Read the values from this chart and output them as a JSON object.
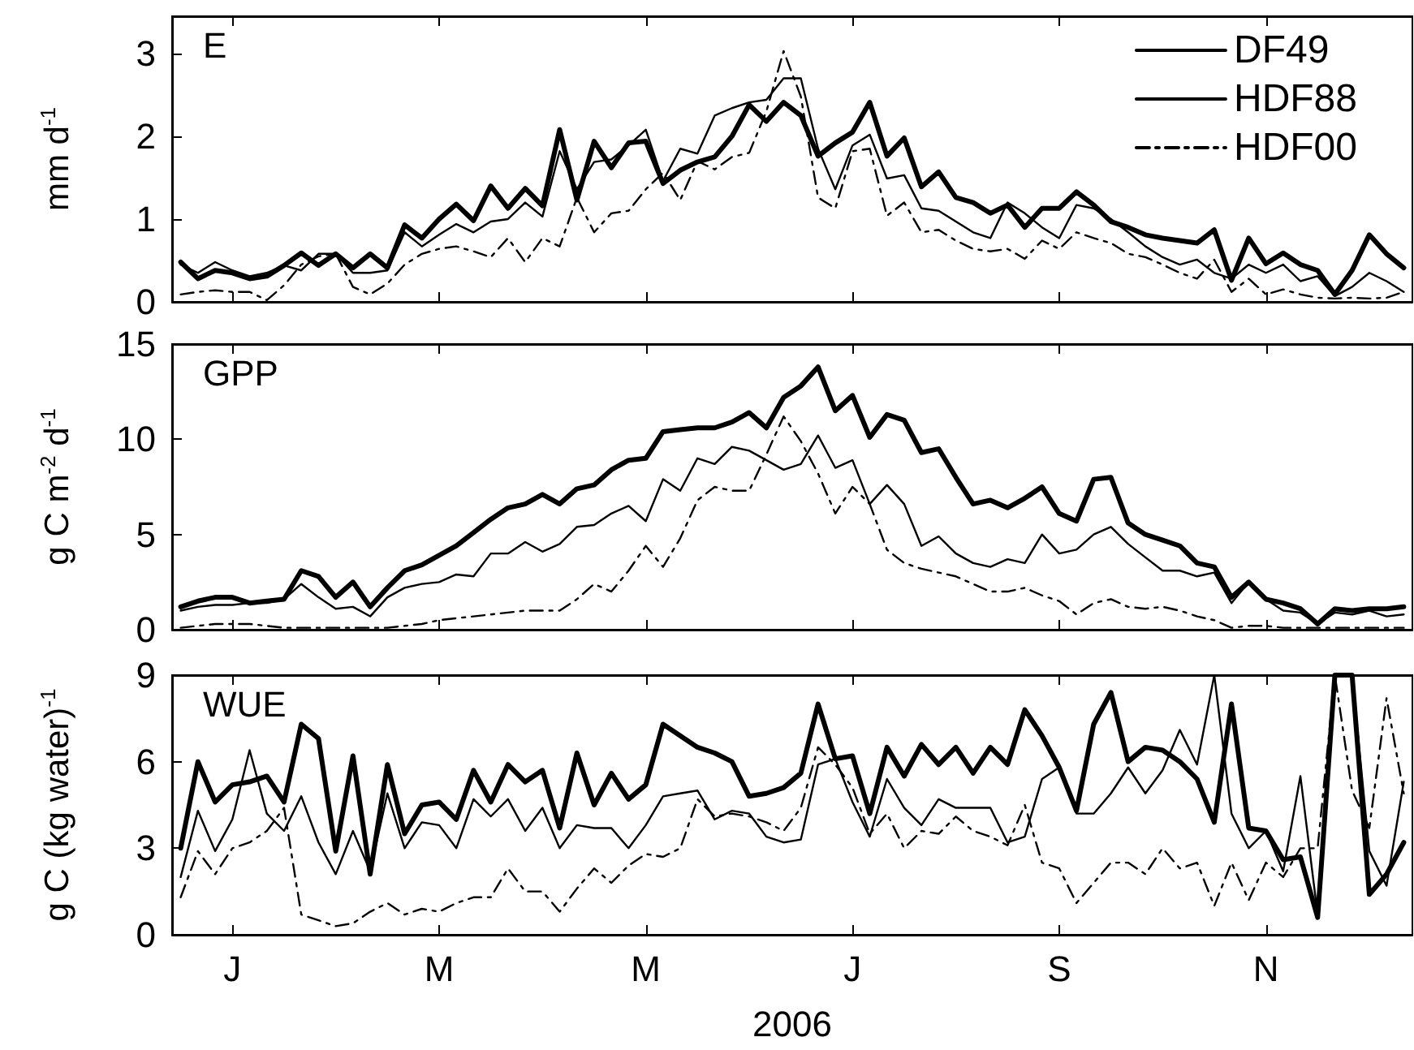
{
  "chart_data": [
    {
      "type": "line",
      "title": "E",
      "ylabel": "mm d$^{-1}$",
      "legend": "top right",
      "marker": "none",
      "grid": false,
      "tick_labels": "y",
      "ylim": [
        0,
        3.45
      ],
      "yticks": [
        0,
        1,
        2,
        3
      ],
      "categories": [
        null,
        null,
        null,
        null,
        null,
        null,
        null,
        null,
        null,
        null,
        null,
        null,
        null,
        null,
        null,
        null,
        null,
        null,
        null,
        null,
        null,
        null,
        null,
        null,
        null,
        null,
        null,
        null,
        null,
        null,
        null,
        null,
        null,
        null,
        null,
        null,
        null,
        null,
        null,
        null,
        null,
        null,
        null,
        null,
        null,
        null,
        null,
        null,
        null,
        null,
        null,
        null,
        null,
        null,
        null,
        null,
        null,
        null,
        null,
        null,
        null,
        null,
        null,
        null,
        null,
        null,
        null,
        null,
        null,
        null,
        null,
        null
      ],
      "series": [
        {
          "name": "DF49",
          "color": "#000000",
          "line_style": "solid",
          "values": [
            0.48,
            0.28,
            0.38,
            0.35,
            0.28,
            0.31,
            0.44,
            0.59,
            0.44,
            0.58,
            0.41,
            0.58,
            0.41,
            0.93,
            0.77,
            1.0,
            1.18,
            0.98,
            1.4,
            1.13,
            1.37,
            1.16,
            2.08,
            1.23,
            1.94,
            1.62,
            1.92,
            1.94,
            1.43,
            1.59,
            1.69,
            1.75,
            2.0,
            2.38,
            2.18,
            2.41,
            2.25,
            1.76,
            1.92,
            2.05,
            2.41,
            1.76,
            1.98,
            1.39,
            1.57,
            1.26,
            1.2,
            1.07,
            1.17,
            0.9,
            1.13,
            1.13,
            1.33,
            1.17,
            0.97,
            0.9,
            0.81,
            0.77,
            0.74,
            0.71,
            0.87,
            0.26,
            0.77,
            0.46,
            0.59,
            0.45,
            0.38,
            0.09,
            0.38,
            0.81,
            0.58,
            0.41
          ]
        },
        {
          "name": "HDF88",
          "color": "#000000",
          "line_style": "solid",
          "values": [
            0.45,
            0.35,
            0.48,
            0.38,
            0.31,
            0.35,
            0.44,
            0.38,
            0.58,
            0.58,
            0.35,
            0.35,
            0.38,
            0.84,
            0.67,
            0.81,
            0.94,
            0.84,
            0.97,
            1.0,
            1.2,
            1.03,
            1.82,
            1.36,
            1.69,
            1.72,
            1.89,
            2.08,
            1.46,
            1.85,
            1.79,
            2.25,
            2.34,
            2.41,
            2.44,
            2.7,
            2.7,
            1.85,
            1.36,
            1.89,
            2.02,
            1.49,
            1.53,
            1.13,
            1.1,
            0.97,
            0.84,
            0.77,
            1.2,
            1.07,
            0.9,
            0.77,
            1.17,
            1.13,
            1.0,
            0.84,
            0.67,
            0.54,
            0.45,
            0.51,
            0.35,
            0.28,
            0.45,
            0.35,
            0.45,
            0.25,
            0.31,
            0.07,
            0.18,
            0.35,
            0.25,
            0.12
          ]
        },
        {
          "name": "HDF00",
          "color": "#000000",
          "line_style": "dashdot",
          "values": [
            0.09,
            0.12,
            0.14,
            0.12,
            0.12,
            0.02,
            0.2,
            0.45,
            0.55,
            0.58,
            0.18,
            0.09,
            0.22,
            0.45,
            0.58,
            0.64,
            0.67,
            0.61,
            0.54,
            0.77,
            0.48,
            0.77,
            0.67,
            1.26,
            0.84,
            1.07,
            1.1,
            1.36,
            1.56,
            1.23,
            1.7,
            1.6,
            1.75,
            1.8,
            2.3,
            3.03,
            2.48,
            1.26,
            1.13,
            1.82,
            1.85,
            1.04,
            1.2,
            0.84,
            0.87,
            0.74,
            0.64,
            0.61,
            0.64,
            0.52,
            0.74,
            0.64,
            0.84,
            0.77,
            0.71,
            0.58,
            0.54,
            0.45,
            0.35,
            0.28,
            0.51,
            0.12,
            0.28,
            0.09,
            0.15,
            0.09,
            0.05,
            0.04,
            0.05,
            0.04,
            0.05,
            0.12
          ]
        }
      ]
    },
    {
      "type": "line",
      "title": "GPP",
      "ylabel": "g C m$^{-2}$ d$^{-1}$",
      "marker": "none",
      "grid": false,
      "tick_labels": "y",
      "ylim": [
        0,
        15
      ],
      "yticks": [
        0,
        5,
        10,
        15
      ],
      "categories": [
        null,
        null,
        null,
        null,
        null,
        null,
        null,
        null,
        null,
        null,
        null,
        null,
        null,
        null,
        null,
        null,
        null,
        null,
        null,
        null,
        null,
        null,
        null,
        null,
        null,
        null,
        null,
        null,
        null,
        null,
        null,
        null,
        null,
        null,
        null,
        null,
        null,
        null,
        null,
        null,
        null,
        null,
        null,
        null,
        null,
        null,
        null,
        null,
        null,
        null,
        null,
        null,
        null,
        null,
        null,
        null,
        null,
        null,
        null,
        null,
        null,
        null,
        null,
        null,
        null,
        null,
        null,
        null,
        null,
        null,
        null,
        null
      ],
      "series": [
        {
          "color": "#000000",
          "line_style": "solid",
          "values": [
            1.2,
            1.5,
            1.7,
            1.7,
            1.4,
            1.5,
            1.6,
            3.1,
            2.8,
            1.7,
            2.5,
            1.2,
            2.2,
            3.1,
            3.4,
            3.9,
            4.4,
            5.1,
            5.8,
            6.4,
            6.6,
            7.1,
            6.6,
            7.4,
            7.6,
            8.4,
            8.9,
            9.0,
            10.4,
            10.5,
            10.6,
            10.6,
            10.9,
            11.4,
            10.6,
            12.2,
            12.8,
            13.8,
            11.5,
            12.3,
            10.1,
            11.3,
            11.0,
            9.3,
            9.5,
            8.0,
            6.6,
            6.8,
            6.4,
            6.9,
            7.5,
            6.1,
            5.7,
            7.9,
            8.0,
            5.6,
            5.0,
            4.7,
            4.4,
            3.5,
            3.3,
            1.7,
            2.5,
            1.6,
            1.4,
            1.1,
            0.3,
            1.1,
            1.0,
            1.1,
            1.1,
            1.2
          ]
        },
        {
          "color": "#000000",
          "line_style": "solid",
          "values": [
            1.0,
            1.2,
            1.3,
            1.3,
            1.4,
            1.4,
            1.6,
            2.4,
            1.7,
            1.1,
            1.2,
            0.7,
            1.7,
            2.2,
            2.4,
            2.5,
            2.9,
            2.8,
            4.0,
            4.0,
            4.6,
            4.1,
            4.5,
            5.4,
            5.5,
            6.1,
            6.5,
            5.7,
            7.9,
            7.3,
            9.0,
            8.7,
            9.6,
            9.4,
            8.9,
            8.4,
            8.7,
            10.2,
            8.5,
            8.9,
            6.6,
            7.6,
            6.6,
            4.4,
            4.9,
            4.0,
            3.5,
            3.3,
            3.7,
            3.5,
            5.0,
            4.0,
            4.2,
            5.0,
            5.4,
            4.5,
            3.8,
            3.1,
            3.1,
            2.8,
            3.0,
            1.4,
            2.5,
            1.6,
            1.0,
            0.9,
            0.3,
            0.9,
            0.8,
            1.0,
            0.7,
            0.8
          ]
        },
        {
          "color": "#000000",
          "line_style": "dashdot",
          "values": [
            0.1,
            0.2,
            0.3,
            0.3,
            0.3,
            0.2,
            0.1,
            0.1,
            0.1,
            0.1,
            0.1,
            0.1,
            0.1,
            0.2,
            0.3,
            0.5,
            0.6,
            0.7,
            0.8,
            0.9,
            1.0,
            1.0,
            1.0,
            1.6,
            2.4,
            2.0,
            3.1,
            4.4,
            3.3,
            4.8,
            6.8,
            7.5,
            7.3,
            7.3,
            9.2,
            11.2,
            9.9,
            8.2,
            6.1,
            7.5,
            6.6,
            4.2,
            3.5,
            3.2,
            3.0,
            2.8,
            2.4,
            2.0,
            2.0,
            2.2,
            1.8,
            1.5,
            0.8,
            1.4,
            1.6,
            1.2,
            1.1,
            1.2,
            1.0,
            0.7,
            0.5,
            0.1,
            0.2,
            0.2,
            0.1,
            0.1,
            0.1,
            0.1,
            0.1,
            0.1,
            0.1,
            0.1
          ]
        }
      ]
    },
    {
      "type": "line",
      "title": "WUE",
      "ylabel": "g C (kg water)$^{-1}$",
      "xlabel": "2006",
      "marker": "none",
      "grid": false,
      "ylim": [
        0,
        9
      ],
      "yticks": [
        0,
        3,
        6,
        9
      ],
      "categories": [
        null,
        null,
        null,
        "J",
        null,
        null,
        null,
        null,
        null,
        null,
        null,
        null,
        null,
        null,
        null,
        "M",
        null,
        null,
        null,
        null,
        null,
        null,
        null,
        null,
        null,
        null,
        null,
        "M",
        null,
        null,
        null,
        null,
        null,
        null,
        null,
        null,
        null,
        null,
        null,
        "J",
        null,
        null,
        null,
        null,
        null,
        null,
        null,
        null,
        null,
        null,
        null,
        "S",
        null,
        null,
        null,
        null,
        null,
        null,
        null,
        null,
        null,
        null,
        null,
        "N",
        null,
        null,
        null,
        null,
        null,
        null,
        null,
        null
      ],
      "series": [
        {
          "color": "#000000",
          "line_style": "solid",
          "values": [
            3.0,
            6.0,
            4.6,
            5.2,
            5.3,
            5.5,
            4.6,
            7.3,
            6.8,
            2.9,
            6.2,
            2.1,
            5.9,
            3.5,
            4.5,
            4.6,
            4.0,
            5.7,
            4.6,
            5.9,
            5.3,
            5.7,
            3.7,
            6.3,
            4.5,
            5.6,
            4.7,
            5.2,
            7.3,
            6.9,
            6.5,
            6.3,
            6.0,
            4.8,
            4.9,
            5.1,
            5.6,
            8.0,
            6.1,
            6.2,
            4.2,
            6.5,
            5.5,
            6.6,
            5.9,
            6.5,
            5.6,
            6.5,
            5.9,
            7.8,
            6.9,
            5.8,
            4.3,
            7.3,
            8.4,
            6.0,
            6.5,
            6.4,
            6.0,
            5.4,
            3.9,
            8.0,
            3.7,
            3.6,
            2.6,
            2.7,
            0.6,
            9,
            9,
            1.4,
            2.1,
            3.2
          ]
        },
        {
          "color": "#000000",
          "line_style": "solid",
          "values": [
            2.0,
            4.3,
            2.9,
            4.0,
            6.4,
            4.2,
            3.6,
            4.8,
            3.2,
            2.1,
            3.6,
            2.2,
            4.9,
            3.0,
            3.9,
            3.8,
            3.0,
            4.7,
            4.1,
            4.7,
            3.6,
            4.4,
            3.0,
            3.8,
            3.7,
            3.7,
            3.0,
            3.8,
            4.8,
            4.9,
            5.0,
            4.0,
            4.3,
            4.2,
            3.4,
            3.2,
            3.3,
            5.9,
            6.1,
            4.6,
            3.4,
            5.4,
            4.4,
            3.8,
            4.7,
            4.4,
            4.4,
            4.4,
            3.2,
            3.4,
            5.4,
            5.8,
            4.2,
            4.2,
            4.9,
            5.8,
            4.9,
            5.7,
            7.1,
            5.9,
            9,
            4.2,
            3.0,
            3.6,
            2.2,
            5.5,
            0.7,
            9,
            9,
            2.9,
            1.7,
            5.3
          ]
        },
        {
          "color": "#000000",
          "line_style": "dashdot",
          "values": [
            1.3,
            2.9,
            2.1,
            3.0,
            3.2,
            3.6,
            4.4,
            0.7,
            0.5,
            0.3,
            0.4,
            0.8,
            1.1,
            0.7,
            0.9,
            0.8,
            1.1,
            1.3,
            1.3,
            2.3,
            1.5,
            1.5,
            0.8,
            1.6,
            2.3,
            1.8,
            2.4,
            2.8,
            2.7,
            3.0,
            4.7,
            4.1,
            4.2,
            4.1,
            3.9,
            3.6,
            4.4,
            6.5,
            5.9,
            5.1,
            3.5,
            4.2,
            3.0,
            3.6,
            3.5,
            4.1,
            3.6,
            3.4,
            3.1,
            4.5,
            2.5,
            2.3,
            1.1,
            1.8,
            2.5,
            2.5,
            2.1,
            3.0,
            2.3,
            2.5,
            1.0,
            2.5,
            1.2,
            2.5,
            2.0,
            3.0,
            3.0,
            9,
            5.0,
            3.7,
            8.2,
            4.9
          ]
        }
      ]
    }
  ]
}
